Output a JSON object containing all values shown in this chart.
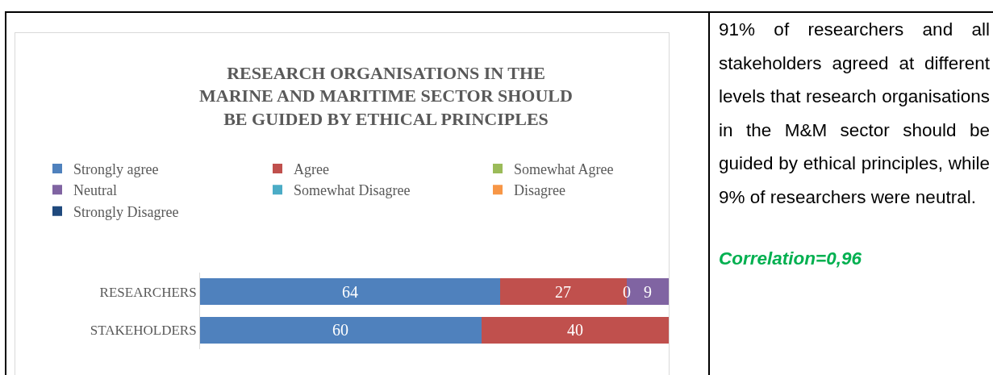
{
  "chart_data": {
    "type": "bar",
    "orientation": "horizontal",
    "stacked": true,
    "title": "RESEARCH ORGANISATIONS IN THE MARINE AND MARITIME SECTOR SHOULD BE GUIDED BY ETHICAL PRINCIPLES",
    "categories": [
      "RESEARCHERS",
      "STAKEHOLDERS"
    ],
    "series": [
      {
        "name": "Strongly agree",
        "color": "#4f81bd",
        "values": [
          64,
          60
        ],
        "value_labels": [
          "64",
          "60"
        ]
      },
      {
        "name": "Agree",
        "color": "#c0504d",
        "values": [
          27,
          40
        ],
        "value_labels": [
          "27",
          "40"
        ]
      },
      {
        "name": "Somewhat Agree",
        "color": "#9bbb59",
        "values": [
          0,
          0
        ],
        "value_labels": [
          "0",
          null
        ]
      },
      {
        "name": "Neutral",
        "color": "#8064a2",
        "values": [
          9,
          0
        ],
        "value_labels": [
          "9",
          null
        ]
      },
      {
        "name": "Somewhat Disagree",
        "color": "#4bacc6",
        "values": [
          0,
          0
        ],
        "value_labels": [
          null,
          null
        ]
      },
      {
        "name": "Disagree",
        "color": "#f79646",
        "values": [
          0,
          0
        ],
        "value_labels": [
          null,
          null
        ]
      },
      {
        "name": "Strongly Disagree",
        "color": "#1f497d",
        "values": [
          0,
          0
        ],
        "value_labels": [
          null,
          null
        ]
      }
    ],
    "xlim": [
      0,
      100
    ],
    "tick_labels": "y",
    "legend": "top",
    "annotations": [
      "91% of researchers and all stakeholders agreed at different levels that research organisations in the M&M sector should be guided by ethical principles, while 9% of researchers were neutral.",
      "Correlation=0,96"
    ]
  }
}
